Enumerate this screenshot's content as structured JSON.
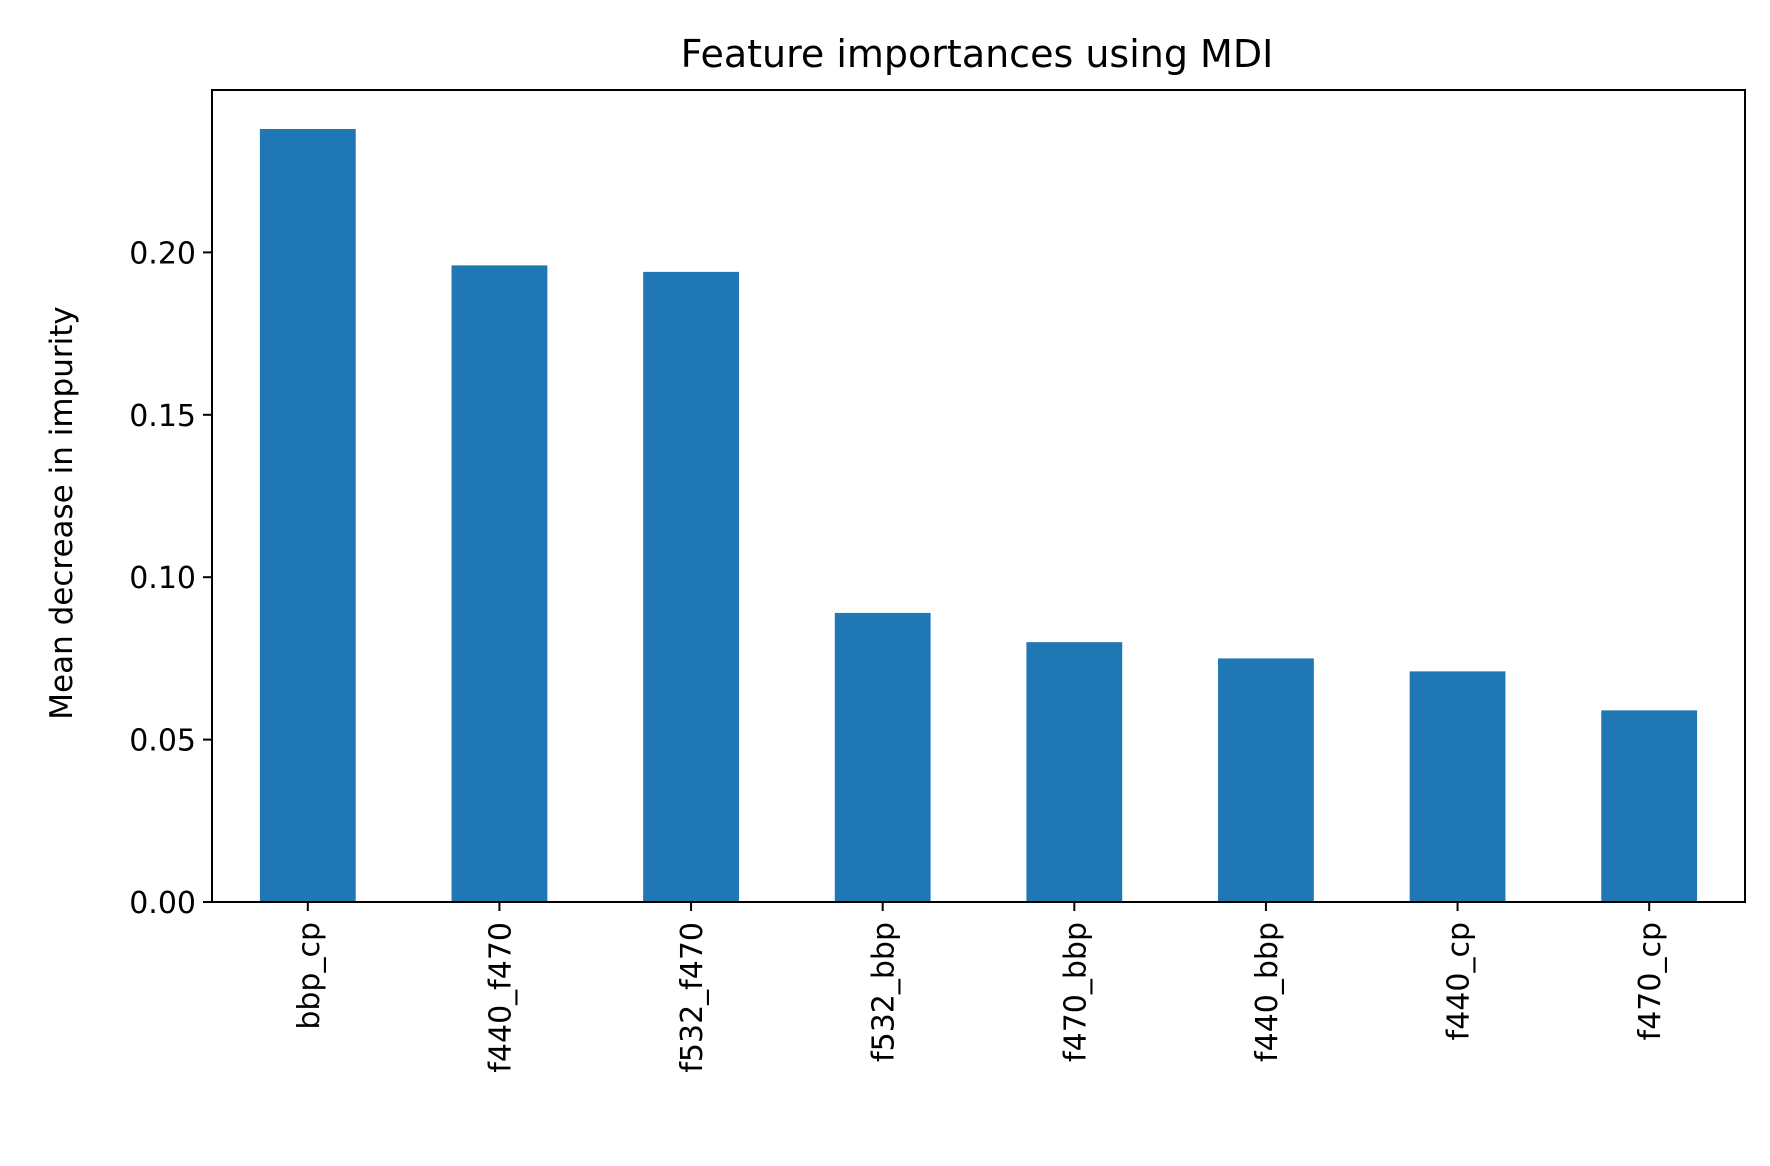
{
  "chart_data": {
    "type": "bar",
    "title": "Feature importances using MDI",
    "xlabel": "",
    "ylabel": "Mean decrease in impurity",
    "categories": [
      "bbp_cp",
      "f440_f470",
      "f532_f470",
      "f532_bbp",
      "f470_bbp",
      "f440_bbp",
      "f440_cp",
      "f470_cp"
    ],
    "values": [
      0.238,
      0.196,
      0.194,
      0.089,
      0.08,
      0.075,
      0.071,
      0.059
    ],
    "yticks": [
      "0.00",
      "0.05",
      "0.10",
      "0.15",
      "0.20"
    ],
    "ylim": [
      0,
      0.25
    ],
    "grid": false,
    "bar_color": "#1f77b4"
  }
}
